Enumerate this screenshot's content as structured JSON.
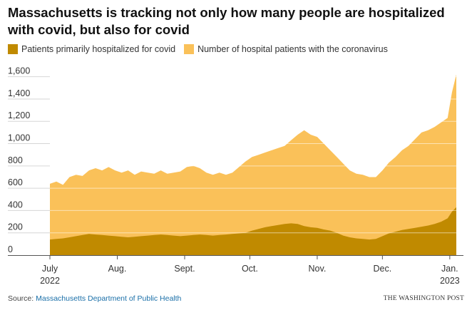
{
  "title": "Massachusetts is tracking not only how many people are hospitalized with covid, but also for covid",
  "legend": [
    {
      "label": "Patients primarily hospitalized for covid",
      "color": "#c08a00"
    },
    {
      "label": "Number of hospital patients with the coronavirus",
      "color": "#fac159"
    }
  ],
  "source": {
    "prefix": "Source: ",
    "name": "Massachusetts Department of Public Health"
  },
  "credit": "THE WASHINGTON POST",
  "chart_data": {
    "type": "area",
    "title": "Massachusetts is tracking not only how many people are hospitalized with covid, but also for covid",
    "xlabel": "",
    "ylabel": "",
    "ylim": [
      0,
      1700
    ],
    "xlim": [
      "2022-07-01",
      "2023-01-04"
    ],
    "yticks": [
      0,
      200,
      400,
      600,
      800,
      1000,
      1200,
      1400,
      1600
    ],
    "ytick_labels": [
      "0",
      "200",
      "400",
      "600",
      "800",
      "1,000",
      "1,200",
      "1,400",
      "1,600"
    ],
    "xticks": [
      {
        "date": "2022-07-01",
        "label": "July",
        "sublabel": "2022"
      },
      {
        "date": "2022-08-01",
        "label": "Aug."
      },
      {
        "date": "2022-09-01",
        "label": "Sept."
      },
      {
        "date": "2022-10-01",
        "label": "Oct."
      },
      {
        "date": "2022-11-01",
        "label": "Nov."
      },
      {
        "date": "2022-12-01",
        "label": "Dec."
      },
      {
        "date": "2023-01-01",
        "label": "Jan.",
        "sublabel": "2023"
      }
    ],
    "grid": "horizontal",
    "legend_position": "top",
    "x": [
      "2022-07-01",
      "2022-07-04",
      "2022-07-07",
      "2022-07-10",
      "2022-07-13",
      "2022-07-16",
      "2022-07-19",
      "2022-07-22",
      "2022-07-25",
      "2022-07-28",
      "2022-07-31",
      "2022-08-03",
      "2022-08-06",
      "2022-08-09",
      "2022-08-12",
      "2022-08-15",
      "2022-08-18",
      "2022-08-21",
      "2022-08-24",
      "2022-08-27",
      "2022-08-30",
      "2022-09-02",
      "2022-09-05",
      "2022-09-08",
      "2022-09-11",
      "2022-09-14",
      "2022-09-17",
      "2022-09-20",
      "2022-09-23",
      "2022-09-26",
      "2022-09-29",
      "2022-10-02",
      "2022-10-05",
      "2022-10-08",
      "2022-10-11",
      "2022-10-14",
      "2022-10-17",
      "2022-10-20",
      "2022-10-23",
      "2022-10-26",
      "2022-10-29",
      "2022-11-01",
      "2022-11-04",
      "2022-11-07",
      "2022-11-10",
      "2022-11-13",
      "2022-11-16",
      "2022-11-19",
      "2022-11-22",
      "2022-11-25",
      "2022-11-28",
      "2022-12-01",
      "2022-12-04",
      "2022-12-07",
      "2022-12-10",
      "2022-12-13",
      "2022-12-16",
      "2022-12-19",
      "2022-12-22",
      "2022-12-25",
      "2022-12-28",
      "2022-12-31",
      "2023-01-02",
      "2023-01-04"
    ],
    "series": [
      {
        "name": "Number of hospital patients with the coronavirus",
        "values": [
          640,
          660,
          630,
          700,
          720,
          710,
          760,
          780,
          760,
          790,
          760,
          740,
          760,
          720,
          750,
          740,
          730,
          760,
          730,
          740,
          750,
          790,
          800,
          780,
          740,
          720,
          740,
          720,
          740,
          790,
          840,
          880,
          900,
          920,
          940,
          960,
          980,
          1030,
          1080,
          1120,
          1080,
          1060,
          1000,
          940,
          880,
          820,
          760,
          730,
          720,
          700,
          700,
          760,
          830,
          880,
          940,
          980,
          1040,
          1100,
          1120,
          1150,
          1190,
          1230,
          1460,
          1620
        ]
      },
      {
        "name": "Patients primarily hospitalized for covid",
        "values": [
          140,
          145,
          150,
          160,
          170,
          180,
          190,
          185,
          180,
          175,
          170,
          165,
          160,
          165,
          170,
          175,
          180,
          185,
          180,
          175,
          170,
          175,
          180,
          185,
          180,
          175,
          180,
          185,
          190,
          195,
          200,
          220,
          235,
          250,
          260,
          270,
          280,
          285,
          280,
          260,
          250,
          245,
          230,
          220,
          200,
          175,
          160,
          150,
          145,
          140,
          145,
          170,
          195,
          210,
          225,
          235,
          245,
          255,
          265,
          280,
          300,
          330,
          390,
          430
        ]
      }
    ]
  }
}
